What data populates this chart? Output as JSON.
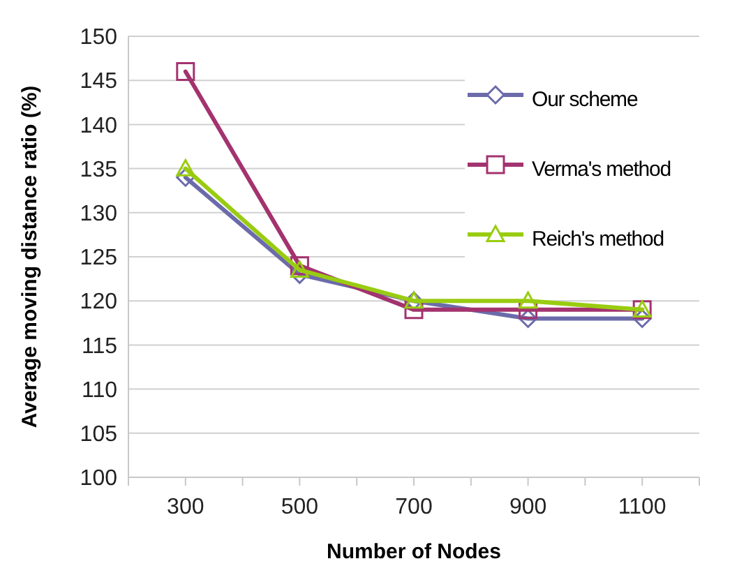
{
  "chart_data": {
    "type": "line",
    "xlabel": "Number of Nodes",
    "ylabel": "Average moving distance ratio (%)",
    "categories": [
      "300",
      "500",
      "700",
      "900",
      "1100"
    ],
    "series": [
      {
        "name": "Our scheme",
        "color": "#6b6bab",
        "marker": "diamond",
        "values": [
          134,
          123,
          120,
          118,
          118
        ]
      },
      {
        "name": "Verma's method",
        "color": "#a3336f",
        "marker": "square",
        "values": [
          146,
          124,
          119,
          119,
          119
        ]
      },
      {
        "name": "Reich's method",
        "color": "#99cc11",
        "marker": "triangle",
        "values": [
          135,
          123.5,
          120,
          120,
          119
        ]
      }
    ],
    "ylim": [
      100,
      150
    ],
    "yticks": [
      100,
      105,
      110,
      115,
      120,
      125,
      130,
      135,
      140,
      145,
      150
    ],
    "grid": "y",
    "legend": "top right"
  }
}
